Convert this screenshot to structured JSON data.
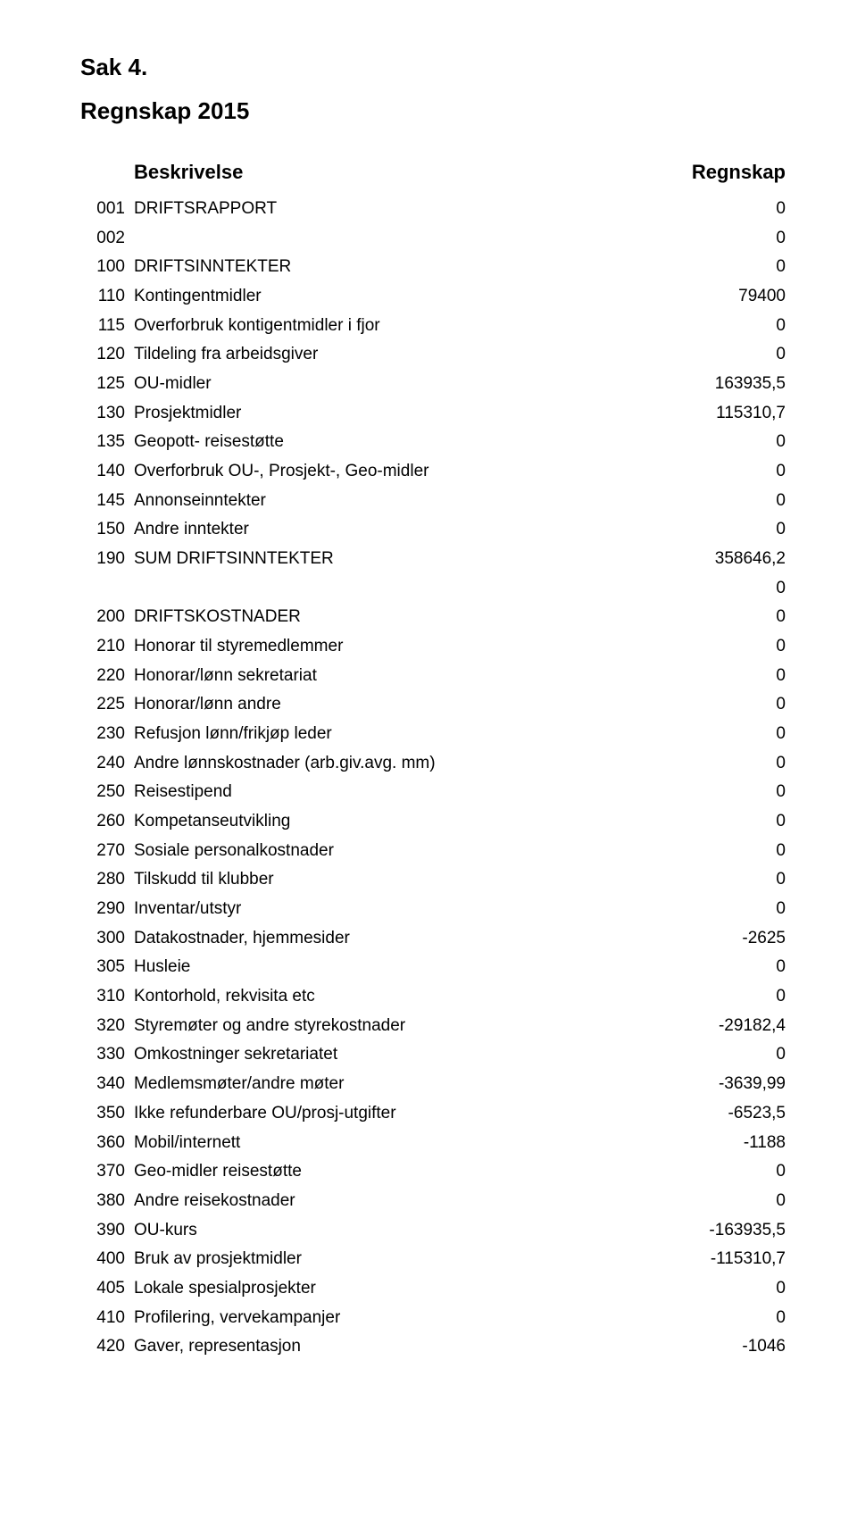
{
  "page": {
    "sak_label": "Sak 4.",
    "subtitle": "Regnskap 2015",
    "header": {
      "col_desc": "Beskrivelse",
      "col_amount": "Regnskap"
    }
  },
  "rows": [
    {
      "code": "001",
      "desc": "DRIFTSRAPPORT",
      "amount": "0"
    },
    {
      "code": "002",
      "desc": "",
      "amount": "0"
    },
    {
      "code": "100",
      "desc": "DRIFTSINNTEKTER",
      "amount": "0"
    },
    {
      "code": "110",
      "desc": "Kontingentmidler",
      "amount": "79400"
    },
    {
      "code": "115",
      "desc": "Overforbruk kontigentmidler i fjor",
      "amount": "0"
    },
    {
      "code": "120",
      "desc": "Tildeling fra arbeidsgiver",
      "amount": "0"
    },
    {
      "code": "125",
      "desc": "OU-midler",
      "amount": "163935,5"
    },
    {
      "code": "130",
      "desc": "Prosjektmidler",
      "amount": "115310,7"
    },
    {
      "code": "135",
      "desc": "Geopott- reisestøtte",
      "amount": "0"
    },
    {
      "code": "140",
      "desc": "Overforbruk OU-, Prosjekt-, Geo-midler",
      "amount": "0"
    },
    {
      "code": "145",
      "desc": "Annonseinntekter",
      "amount": "0"
    },
    {
      "code": "150",
      "desc": "Andre inntekter",
      "amount": "0"
    },
    {
      "code": "190",
      "desc": "SUM DRIFTSINNTEKTER",
      "amount": "358646,2"
    },
    {
      "code": "",
      "desc": "",
      "amount": "0"
    },
    {
      "code": "200",
      "desc": "DRIFTSKOSTNADER",
      "amount": "0"
    },
    {
      "code": "210",
      "desc": "Honorar til styremedlemmer",
      "amount": "0"
    },
    {
      "code": "220",
      "desc": "Honorar/lønn sekretariat",
      "amount": "0"
    },
    {
      "code": "225",
      "desc": "Honorar/lønn andre",
      "amount": "0"
    },
    {
      "code": "230",
      "desc": "Refusjon lønn/frikjøp leder",
      "amount": "0"
    },
    {
      "code": "240",
      "desc": "Andre lønnskostnader (arb.giv.avg. mm)",
      "amount": "0"
    },
    {
      "code": "250",
      "desc": "Reisestipend",
      "amount": "0"
    },
    {
      "code": "260",
      "desc": "Kompetanseutvikling",
      "amount": "0"
    },
    {
      "code": "270",
      "desc": "Sosiale personalkostnader",
      "amount": "0"
    },
    {
      "code": "280",
      "desc": "Tilskudd til klubber",
      "amount": "0"
    },
    {
      "code": "290",
      "desc": "Inventar/utstyr",
      "amount": "0"
    },
    {
      "code": "300",
      "desc": "Datakostnader, hjemmesider",
      "amount": "-2625"
    },
    {
      "code": "305",
      "desc": "Husleie",
      "amount": "0"
    },
    {
      "code": "310",
      "desc": "Kontorhold, rekvisita etc",
      "amount": "0"
    },
    {
      "code": "320",
      "desc": "Styremøter og andre styrekostnader",
      "amount": "-29182,4"
    },
    {
      "code": "330",
      "desc": "Omkostninger sekretariatet",
      "amount": "0"
    },
    {
      "code": "340",
      "desc": "Medlemsmøter/andre møter",
      "amount": "-3639,99"
    },
    {
      "code": "350",
      "desc": "Ikke refunderbare OU/prosj-utgifter",
      "amount": "-6523,5"
    },
    {
      "code": "360",
      "desc": "Mobil/internett",
      "amount": "-1188"
    },
    {
      "code": "370",
      "desc": "Geo-midler reisestøtte",
      "amount": "0"
    },
    {
      "code": "380",
      "desc": "Andre reisekostnader",
      "amount": "0"
    },
    {
      "code": "390",
      "desc": "OU-kurs",
      "amount": "-163935,5"
    },
    {
      "code": "400",
      "desc": "Bruk av prosjektmidler",
      "amount": "-115310,7"
    },
    {
      "code": "405",
      "desc": "Lokale spesialprosjekter",
      "amount": "0"
    },
    {
      "code": "410",
      "desc": "Profilering, vervekampanjer",
      "amount": "0"
    },
    {
      "code": "420",
      "desc": "Gaver, representasjon",
      "amount": "-1046"
    }
  ]
}
